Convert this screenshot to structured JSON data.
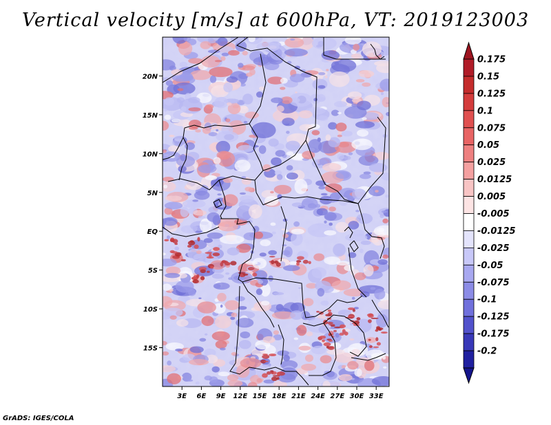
{
  "title": "Vertical velocity [m/s] at 600hPa, VT: 2019123003",
  "credit": "GrADS: IGES/COLA",
  "map": {
    "lon_range": [
      0,
      35
    ],
    "lat_range": [
      -20,
      25
    ],
    "lat_ticks": [
      {
        "lat": 20,
        "label": "20N"
      },
      {
        "lat": 15,
        "label": "15N"
      },
      {
        "lat": 10,
        "label": "10N"
      },
      {
        "lat": 5,
        "label": "5N"
      },
      {
        "lat": 0,
        "label": "EQ"
      },
      {
        "lat": -5,
        "label": "5S"
      },
      {
        "lat": -10,
        "label": "10S"
      },
      {
        "lat": -15,
        "label": "15S"
      }
    ],
    "lon_ticks": [
      {
        "lon": 3,
        "label": "3E"
      },
      {
        "lon": 6,
        "label": "6E"
      },
      {
        "lon": 9,
        "label": "9E"
      },
      {
        "lon": 12,
        "label": "12E"
      },
      {
        "lon": 15,
        "label": "15E"
      },
      {
        "lon": 18,
        "label": "18E"
      },
      {
        "lon": 21,
        "label": "21E"
      },
      {
        "lon": 24,
        "label": "24E"
      },
      {
        "lon": 27,
        "label": "27E"
      },
      {
        "lon": 30,
        "label": "30E"
      },
      {
        "lon": 33,
        "label": "33E"
      }
    ]
  },
  "colorbar": {
    "levels": [
      {
        "label": "0.175",
        "color": "#b01c28"
      },
      {
        "label": "0.15",
        "color": "#c42c2c"
      },
      {
        "label": "0.125",
        "color": "#d43c3c"
      },
      {
        "label": "0.1",
        "color": "#e05050"
      },
      {
        "label": "0.075",
        "color": "#e86464"
      },
      {
        "label": "0.05",
        "color": "#ee8080"
      },
      {
        "label": "0.025",
        "color": "#f4a0a0"
      },
      {
        "label": "0.0125",
        "color": "#f8c4c4"
      },
      {
        "label": "0.005",
        "color": "#fde4e4"
      },
      {
        "label": "-0.005",
        "color": "#ffffff"
      },
      {
        "label": "-0.0125",
        "color": "#e4e4fc"
      },
      {
        "label": "-0.025",
        "color": "#c8c8f8"
      },
      {
        "label": "-0.05",
        "color": "#a8a8f0"
      },
      {
        "label": "-0.075",
        "color": "#8c8ce6"
      },
      {
        "label": "-0.1",
        "color": "#7070dc"
      },
      {
        "label": "-0.125",
        "color": "#5252cc"
      },
      {
        "label": "-0.175",
        "color": "#3838b8"
      },
      {
        "label": "-0.2",
        "color": "#2020a0"
      }
    ],
    "top_color": "#9e1420",
    "bottom_color": "#14148c"
  }
}
